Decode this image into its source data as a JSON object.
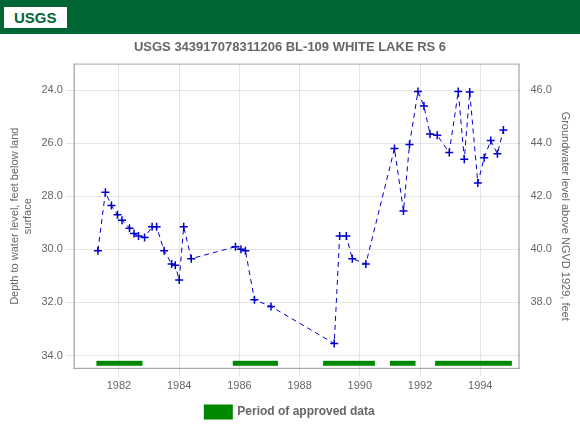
{
  "chart_data": {
    "type": "line",
    "title": "USGS 343917078311206 BL-109 WHITE LAKE RS 6",
    "annotations": [
      {
        "text": "USGS",
        "color": "#006633"
      }
    ],
    "ylabel": "Depth to water level, feet below land\nsurface",
    "y2label": "Groundwater level above NGVD 1929, feet",
    "xlim": [
      1980.5,
      1995.3
    ],
    "xticks": [
      1982,
      1984,
      1986,
      1988,
      1990,
      1992,
      1994
    ],
    "ylim": [
      34.5,
      23.0
    ],
    "yticks": [
      {
        "value": 24.0,
        "label": "24.0"
      },
      {
        "value": 26.0,
        "label": "26.0"
      },
      {
        "value": 28.0,
        "label": "28.0"
      },
      {
        "value": 30.0,
        "label": "30.0"
      },
      {
        "value": 32.0,
        "label": "32.0"
      },
      {
        "value": 34.0,
        "label": "34.0"
      }
    ],
    "y2lim": [
      35.5,
      47.0
    ],
    "y2ticks": [
      {
        "value": 38.0,
        "label": "38.0"
      },
      {
        "value": 40.0,
        "label": "40.0"
      },
      {
        "value": 42.0,
        "label": "42.0"
      },
      {
        "value": 44.0,
        "label": "44.0"
      },
      {
        "value": 46.0,
        "label": "46.0"
      }
    ],
    "grid": true,
    "legend": "bottom",
    "x": [
      1981.3,
      1981.55,
      1981.75,
      1981.95,
      1982.1,
      1982.35,
      1982.5,
      1982.65,
      1982.85,
      1983.1,
      1983.25,
      1983.5,
      1983.75,
      1983.87,
      1984.0,
      1984.15,
      1984.4,
      1985.87,
      1986.05,
      1986.2,
      1986.5,
      1987.05,
      1989.15,
      1989.33,
      1989.55,
      1989.75,
      1990.2,
      1991.15,
      1991.45,
      1991.65,
      1991.93,
      1992.13,
      1992.33,
      1992.57,
      1992.97,
      1993.27,
      1993.47,
      1993.65,
      1993.92,
      1994.13,
      1994.35,
      1994.57,
      1994.77
    ],
    "series": [
      {
        "color": "#0000cc",
        "line_style": "dashed",
        "marker": "plus",
        "axis": "y",
        "values": [
          30.05,
          27.85,
          28.35,
          28.7,
          28.9,
          29.2,
          29.4,
          29.5,
          29.55,
          29.15,
          29.15,
          30.05,
          30.55,
          30.6,
          31.15,
          29.15,
          30.35,
          29.9,
          30.0,
          30.05,
          31.9,
          32.15,
          33.55,
          29.5,
          29.5,
          30.35,
          30.55,
          26.2,
          28.55,
          26.05,
          24.05,
          24.6,
          25.65,
          25.7,
          26.35,
          24.05,
          26.6,
          24.07,
          27.5,
          26.55,
          25.9,
          26.4,
          25.5
        ]
      },
      {
        "name": "Period of approved data",
        "type": "bar",
        "color": "#008800",
        "periods": [
          [
            1981.25,
            1982.78
          ],
          [
            1985.78,
            1987.28
          ],
          [
            1988.78,
            1990.5
          ],
          [
            1991.0,
            1991.85
          ],
          [
            1992.5,
            1995.05
          ]
        ]
      }
    ]
  }
}
